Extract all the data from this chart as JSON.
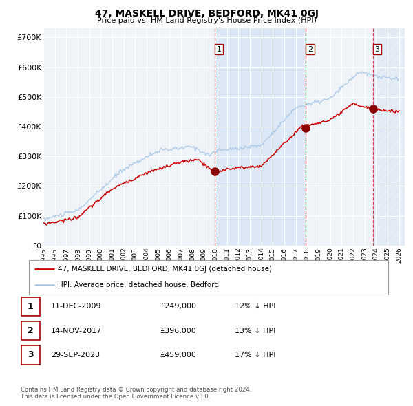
{
  "title": "47, MASKELL DRIVE, BEDFORD, MK41 0GJ",
  "subtitle": "Price paid vs. HM Land Registry's House Price Index (HPI)",
  "xlim_start": 1995.0,
  "xlim_end": 2026.5,
  "ylim": [
    0,
    730000
  ],
  "yticks": [
    0,
    100000,
    200000,
    300000,
    400000,
    500000,
    600000,
    700000
  ],
  "ytick_labels": [
    "£0",
    "£100K",
    "£200K",
    "£300K",
    "£400K",
    "£500K",
    "£600K",
    "£700K"
  ],
  "background_color": "#ffffff",
  "plot_bg_color": "#f0f4f8",
  "grid_color": "#ffffff",
  "hpi_color": "#aac8e8",
  "price_color": "#cc0000",
  "shade_color": "#dce8f5",
  "purchase_dates": [
    2009.94,
    2017.87,
    2023.75
  ],
  "purchase_prices": [
    249000,
    396000,
    459000
  ],
  "purchase_labels": [
    "1",
    "2",
    "3"
  ],
  "legend_entries": [
    "47, MASKELL DRIVE, BEDFORD, MK41 0GJ (detached house)",
    "HPI: Average price, detached house, Bedford"
  ],
  "table_rows": [
    {
      "num": "1",
      "date": "11-DEC-2009",
      "price": "£249,000",
      "hpi": "12% ↓ HPI"
    },
    {
      "num": "2",
      "date": "14-NOV-2017",
      "price": "£396,000",
      "hpi": "13% ↓ HPI"
    },
    {
      "num": "3",
      "date": "29-SEP-2023",
      "price": "£459,000",
      "hpi": "17% ↓ HPI"
    }
  ],
  "footnote": "Contains HM Land Registry data © Crown copyright and database right 2024.\nThis data is licensed under the Open Government Licence v3.0."
}
